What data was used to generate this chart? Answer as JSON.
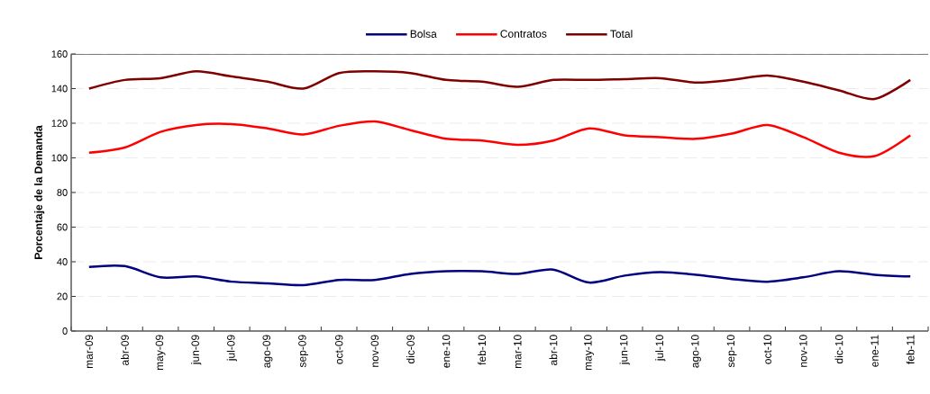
{
  "chart_data": {
    "type": "line",
    "ylabel": "Porcentaje de la Demanda",
    "categories": [
      "mar-09",
      "abr-09",
      "may-09",
      "jun-09",
      "jul-09",
      "ago-09",
      "sep-09",
      "oct-09",
      "nov-09",
      "dic-09",
      "ene-10",
      "feb-10",
      "mar-10",
      "abr-10",
      "may-10",
      "jun-10",
      "jul-10",
      "ago-10",
      "sep-10",
      "oct-10",
      "nov-10",
      "dic-10",
      "ene-11",
      "feb-11"
    ],
    "series": [
      {
        "name": "Bolsa",
        "color": "#000080",
        "values": [
          37,
          37.5,
          31,
          31.5,
          28.5,
          27.5,
          26.5,
          29.5,
          29.5,
          33,
          34.5,
          34.5,
          33,
          35.5,
          28,
          32,
          34,
          32.5,
          30,
          28.5,
          31,
          34.5,
          32.5,
          31.5
        ]
      },
      {
        "name": "Contratos",
        "color": "#ff0000",
        "values": [
          103,
          106,
          115,
          119,
          119.5,
          117,
          113.5,
          118.5,
          121,
          116,
          111,
          110,
          107.5,
          110,
          117,
          113,
          112,
          111,
          114,
          119,
          112,
          103,
          101,
          113
        ]
      },
      {
        "name": "Total",
        "color": "#800000",
        "values": [
          140,
          145,
          146,
          150,
          147,
          144,
          140,
          149,
          150,
          149,
          145,
          144,
          141,
          145,
          145,
          145.5,
          146,
          143.5,
          145,
          147.5,
          144,
          139,
          134,
          145
        ]
      }
    ],
    "ylim": [
      0,
      160
    ],
    "yticks": [
      0,
      20,
      40,
      60,
      80,
      100,
      120,
      140,
      160
    ],
    "grid": "y",
    "legend": "top",
    "marker": "none",
    "line_style": "solid"
  }
}
